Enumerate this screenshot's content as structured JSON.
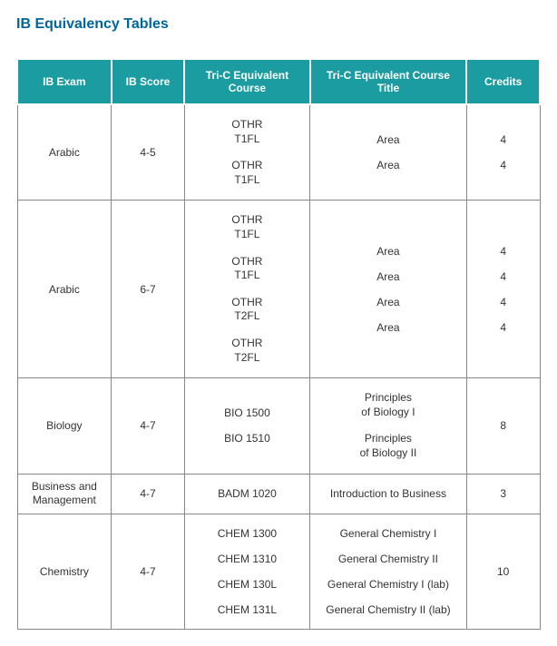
{
  "title": "IB Equivalency Tables",
  "headers": {
    "exam": "IB Exam",
    "score": "IB Score",
    "equiv_course": "Tri-C Equivalent Course",
    "equiv_title": "Tri-C Equivalent Course Title",
    "credits": "Credits"
  },
  "rows": [
    {
      "exam": "Arabic",
      "score": "4-5",
      "courses": [
        "OTHR T1FL",
        "OTHR T1FL"
      ],
      "titles": [
        "Area",
        "Area"
      ],
      "credits": [
        "4",
        "4"
      ]
    },
    {
      "exam": "Arabic",
      "score": "6-7",
      "courses": [
        "OTHR T1FL",
        "OTHR T1FL",
        "OTHR T2FL",
        "OTHR T2FL"
      ],
      "titles": [
        "Area",
        "Area",
        "Area",
        "Area"
      ],
      "credits": [
        "4",
        "4",
        "4",
        "4"
      ]
    },
    {
      "exam": "Biology",
      "score": "4-7",
      "courses": [
        "BIO 1500",
        "BIO 1510"
      ],
      "titles": [
        "Principles of Biology I",
        "Principles of Biology II"
      ],
      "credits_single": "8"
    },
    {
      "exam": "Business and Management",
      "score": "4-7",
      "courses": [
        "BADM 1020"
      ],
      "titles": [
        "Introduction to Business"
      ],
      "credits_single": "3"
    },
    {
      "exam": "Chemistry",
      "score": "4-7",
      "courses": [
        "CHEM 1300",
        "CHEM 1310",
        "CHEM 130L",
        "CHEM 131L"
      ],
      "titles": [
        "General Chemistry I",
        "General Chemistry II",
        "General Chemistry I (lab)",
        "General Chemistry II (lab)"
      ],
      "credits_single": "10"
    }
  ],
  "style": {
    "header_bg": "#1a9ca0",
    "header_fg": "#ffffff",
    "title_color": "#006699",
    "border_color": "#888888",
    "font_size_body": 12,
    "font_size_title": 16
  }
}
